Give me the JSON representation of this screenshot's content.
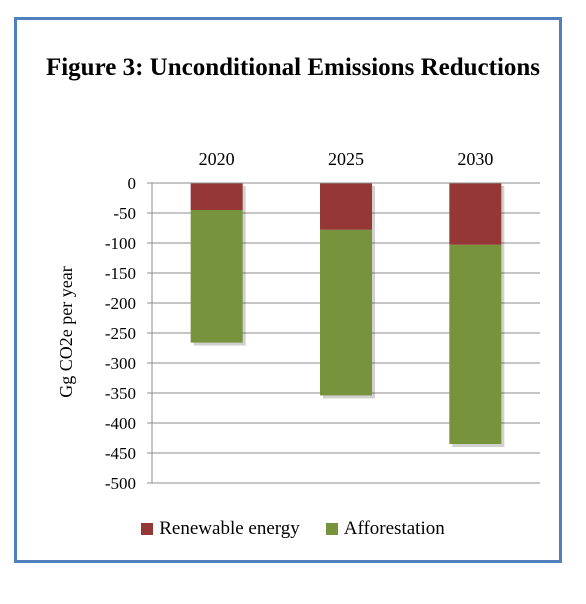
{
  "chart_data": {
    "type": "bar",
    "stacked": true,
    "title": "Figure 3: Unconditional Emissions Reductions",
    "ylabel": "Gg CO2e per year",
    "xlabel": "",
    "categories": [
      "2020",
      "2025",
      "2030"
    ],
    "x_axis_position": "top",
    "ylim": [
      -500,
      0
    ],
    "yticks": [
      0,
      -50,
      -100,
      -150,
      -200,
      -250,
      -300,
      -350,
      -400,
      -450,
      -500
    ],
    "grid": true,
    "legend_position": "bottom",
    "series": [
      {
        "name": "Renewable energy",
        "color": "#953735",
        "values": [
          -45,
          -78,
          -103
        ]
      },
      {
        "name": "Afforestation",
        "color": "#77933c",
        "values": [
          -221,
          -276,
          -332
        ]
      }
    ]
  }
}
